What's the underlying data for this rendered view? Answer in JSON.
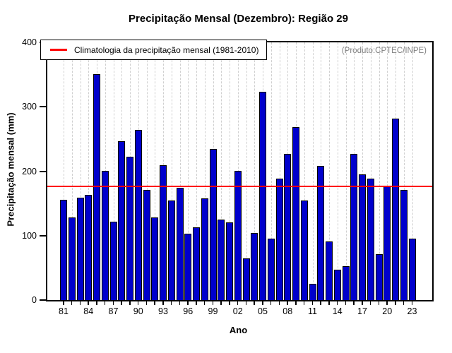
{
  "title": "Precipitação Mensal (Dezembro): Região 29",
  "produto_note": "(Produto:CPTEC/INPE)",
  "legend": {
    "label": "Climatologia da precipitação mensal (1981-2010)",
    "line_color": "#ff0000"
  },
  "chart_data": {
    "type": "bar",
    "title": "Precipitação Mensal (Dezembro): Região 29",
    "xlabel": "Ano",
    "ylabel": "Precipitação mensal (mm)",
    "ylim": [
      0,
      400
    ],
    "y_ticks": [
      0,
      100,
      200,
      300,
      400
    ],
    "x_tick_labels": [
      "81",
      "84",
      "87",
      "90",
      "93",
      "96",
      "99",
      "02",
      "05",
      "08",
      "11",
      "14",
      "17",
      "20",
      "23"
    ],
    "x_label_every": 3,
    "categories": [
      "81",
      "82",
      "83",
      "84",
      "85",
      "86",
      "87",
      "88",
      "89",
      "90",
      "91",
      "92",
      "93",
      "94",
      "95",
      "96",
      "97",
      "98",
      "99",
      "00",
      "01",
      "02",
      "03",
      "04",
      "05",
      "06",
      "07",
      "08",
      "09",
      "10",
      "11",
      "12",
      "13",
      "14",
      "15",
      "16",
      "17",
      "18",
      "19",
      "20",
      "21",
      "22",
      "23"
    ],
    "values": [
      156,
      128,
      159,
      163,
      351,
      200,
      122,
      247,
      222,
      264,
      171,
      128,
      209,
      154,
      174,
      103,
      113,
      158,
      234,
      125,
      121,
      201,
      65,
      104,
      323,
      95,
      189,
      227,
      268,
      155,
      25,
      208,
      91,
      47,
      53,
      227,
      195,
      189,
      71,
      176,
      282,
      171,
      95
    ],
    "climatology_value": 176,
    "climatology_label": "Climatologia da precipitação mensal (1981-2010)",
    "annotation": "(Produto:CPTEC/INPE)",
    "bar_color": "#0000cc",
    "bar_border_color": "#000000",
    "climatology_color": "#ff0000",
    "grid": "vertical-dashed",
    "legend_position": "top-left"
  }
}
